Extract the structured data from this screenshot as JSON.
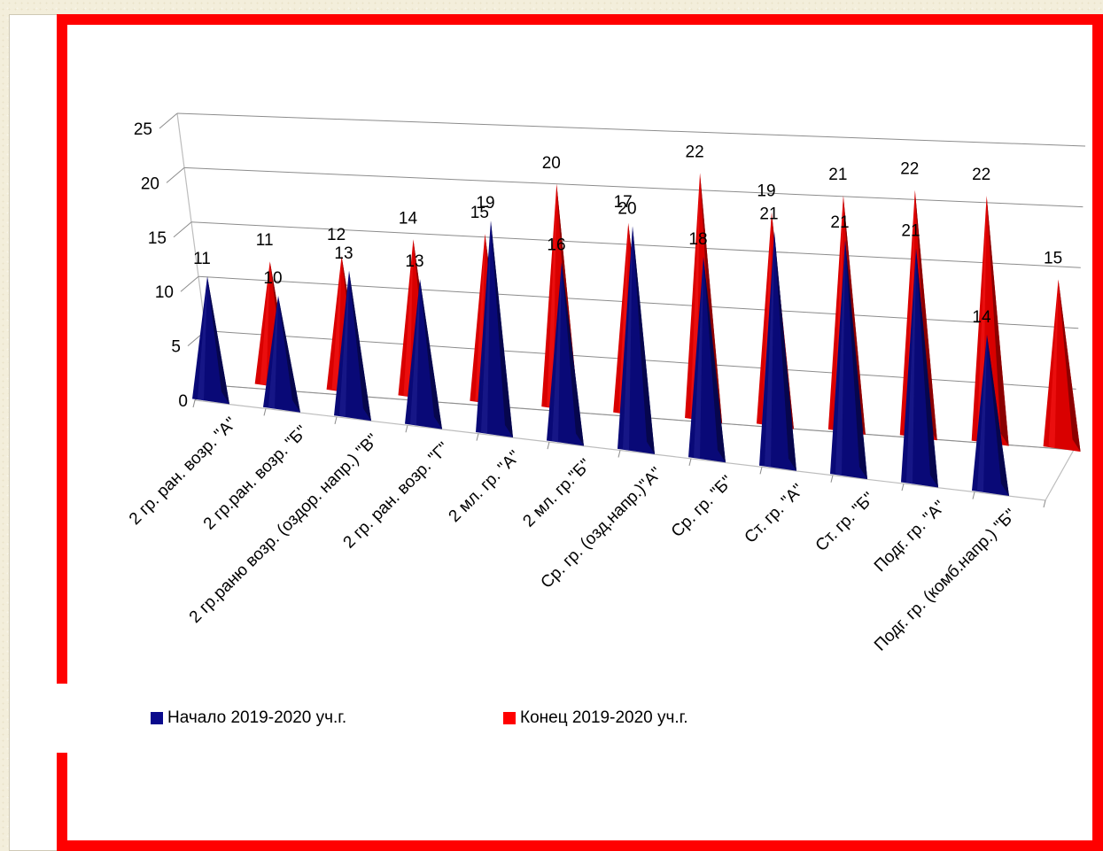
{
  "colors": {
    "start_series": "#0a0a8c",
    "end_series": "#ff0000",
    "frame": "#ff0000",
    "background": "#f3eedb"
  },
  "legend": {
    "start_label": "Начало 2019-2020 уч.г.",
    "end_label": "Конец 2019-2020 уч.г."
  },
  "chart_data": {
    "type": "bar",
    "subtype": "3d-pyramid",
    "title": "",
    "xlabel": "",
    "ylabel": "",
    "ylim": [
      0,
      25
    ],
    "yticks": [
      0,
      5,
      10,
      15,
      20,
      25
    ],
    "grid": true,
    "legend_position": "bottom",
    "categories": [
      "2 гр. ран. возр. \"А\"",
      "2 гр.ран. возр. \"Б\"",
      "2 гр.раню возр. (оздор. напр.) \"В\"",
      "2 гр. ран. возр. \"Г\"",
      "2 мл. гр. \"А\"",
      "2 мл. гр.\"Б\"",
      "Ср. гр. (озд.напр.)\"А\"",
      "Ср. гр. \"Б\"",
      "Ст. гр. \"А\"",
      "Ст. гр. \"Б\"",
      "Подг. гр. \"А\"",
      "Подг. гр. (комб.напр.) \"Б\""
    ],
    "series": [
      {
        "name": "Начало 2019-2020 уч.г.",
        "values": [
          11,
          10,
          13,
          13,
          19,
          16,
          20,
          18,
          21,
          21,
          21,
          14
        ]
      },
      {
        "name": "Конец 2019-2020 уч.г.",
        "values": [
          11,
          12,
          14,
          15,
          20,
          17,
          22,
          19,
          21,
          22,
          22,
          15
        ]
      }
    ]
  }
}
